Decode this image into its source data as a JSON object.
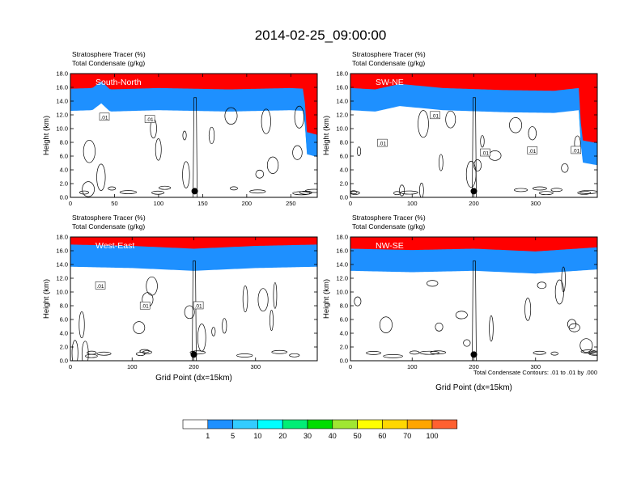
{
  "title": "2014-02-25_09:00:00",
  "footer_note": "Total Condensate Contours: .01 to .01 by .000",
  "colorbar": {
    "labels": [
      "1",
      "5",
      "10",
      "20",
      "30",
      "40",
      "50",
      "60",
      "70",
      "100"
    ],
    "colors": [
      "#ffffff",
      "#1e90ff",
      "#33ccff",
      "#00ffff",
      "#00ee76",
      "#00dd00",
      "#a0e632",
      "#ffff00",
      "#ffd700",
      "#ffa500",
      "#ff6030",
      "#ff0000"
    ]
  },
  "chart_data": [
    {
      "type": "heatmap",
      "panel": "South-North",
      "header_line1": "Stratosphere Tracer   (%)",
      "header_line2": "Total Condensate   (g/kg)",
      "ylabel": "Height (km)",
      "xlabel": "",
      "xlim": [
        0,
        280
      ],
      "ylim": [
        0,
        18
      ],
      "xticks": [
        0,
        50,
        100,
        150,
        200,
        250
      ],
      "yticks": [
        "0.0",
        "2.0",
        "4.0",
        "6.0",
        "8.0",
        "10.0",
        "12.0",
        "14.0",
        "16.0",
        "18.0"
      ],
      "contour_labels": [
        ".01",
        ".01"
      ],
      "marker_x": 141,
      "tropopause_km": [
        [
          0,
          14.5
        ],
        [
          25,
          14.6
        ],
        [
          35,
          15.6
        ],
        [
          45,
          14.4
        ],
        [
          100,
          14.6
        ],
        [
          180,
          14.4
        ],
        [
          250,
          14.6
        ],
        [
          265,
          14.5
        ],
        [
          268,
          8.2
        ],
        [
          280,
          7.8
        ]
      ]
    },
    {
      "type": "heatmap",
      "panel": "SW-NE",
      "header_line1": "Stratosphere Tracer   (%)",
      "header_line2": "Total Condensate   (g/kg)",
      "ylabel": "Height (km)",
      "xlabel": "",
      "xlim": [
        0,
        400
      ],
      "ylim": [
        0,
        18
      ],
      "xticks": [
        0,
        100,
        200,
        300
      ],
      "yticks": [
        "0.0",
        "2.0",
        "4.0",
        "6.0",
        "8.0",
        "10.0",
        "12.0",
        "14.0",
        "16.0",
        "18.0"
      ],
      "contour_labels": [
        ".01",
        ".01",
        ".01",
        ".01",
        ".01"
      ],
      "marker_x": 200,
      "tropopause_km": [
        [
          0,
          14.6
        ],
        [
          40,
          14.4
        ],
        [
          80,
          15.2
        ],
        [
          150,
          14.6
        ],
        [
          250,
          14.3
        ],
        [
          330,
          14.2
        ],
        [
          370,
          14.6
        ],
        [
          375,
          7.0
        ],
        [
          400,
          6.6
        ]
      ]
    },
    {
      "type": "heatmap",
      "panel": "West-East",
      "header_line1": "Stratosphere Tracer   (%)",
      "header_line2": "Total Condensate   (g/kg)",
      "ylabel": "Height (km)",
      "xlabel": "Grid Point (dx=15km)",
      "xlim": [
        0,
        400
      ],
      "ylim": [
        0,
        18
      ],
      "xticks": [
        0,
        100,
        200,
        300
      ],
      "yticks": [
        "0.0",
        "2.0",
        "4.0",
        "6.0",
        "8.0",
        "10.0",
        "12.0",
        "14.0",
        "16.0",
        "18.0"
      ],
      "contour_labels": [
        ".01",
        ".01",
        ".01"
      ],
      "marker_x": 200,
      "tropopause_km": [
        [
          0,
          15.6
        ],
        [
          100,
          15.4
        ],
        [
          200,
          15.0
        ],
        [
          300,
          15.4
        ],
        [
          400,
          15.6
        ]
      ]
    },
    {
      "type": "heatmap",
      "panel": "NW-SE",
      "header_line1": "Stratosphere Tracer   (%)",
      "header_line2": "Total Condensate   (g/kg)",
      "ylabel": "Height (km)",
      "xlabel": "Grid Point (dx=15km)",
      "xlim": [
        0,
        400
      ],
      "ylim": [
        0,
        18
      ],
      "xticks": [
        0,
        100,
        200,
        300
      ],
      "yticks": [
        "0.0",
        "2.0",
        "4.0",
        "6.0",
        "8.0",
        "10.0",
        "12.0",
        "14.0",
        "16.0",
        "18.0"
      ],
      "contour_labels": [],
      "marker_x": 200,
      "tropopause_km": [
        [
          0,
          15.0
        ],
        [
          100,
          14.8
        ],
        [
          200,
          15.0
        ],
        [
          300,
          14.6
        ],
        [
          400,
          15.2
        ]
      ]
    }
  ]
}
